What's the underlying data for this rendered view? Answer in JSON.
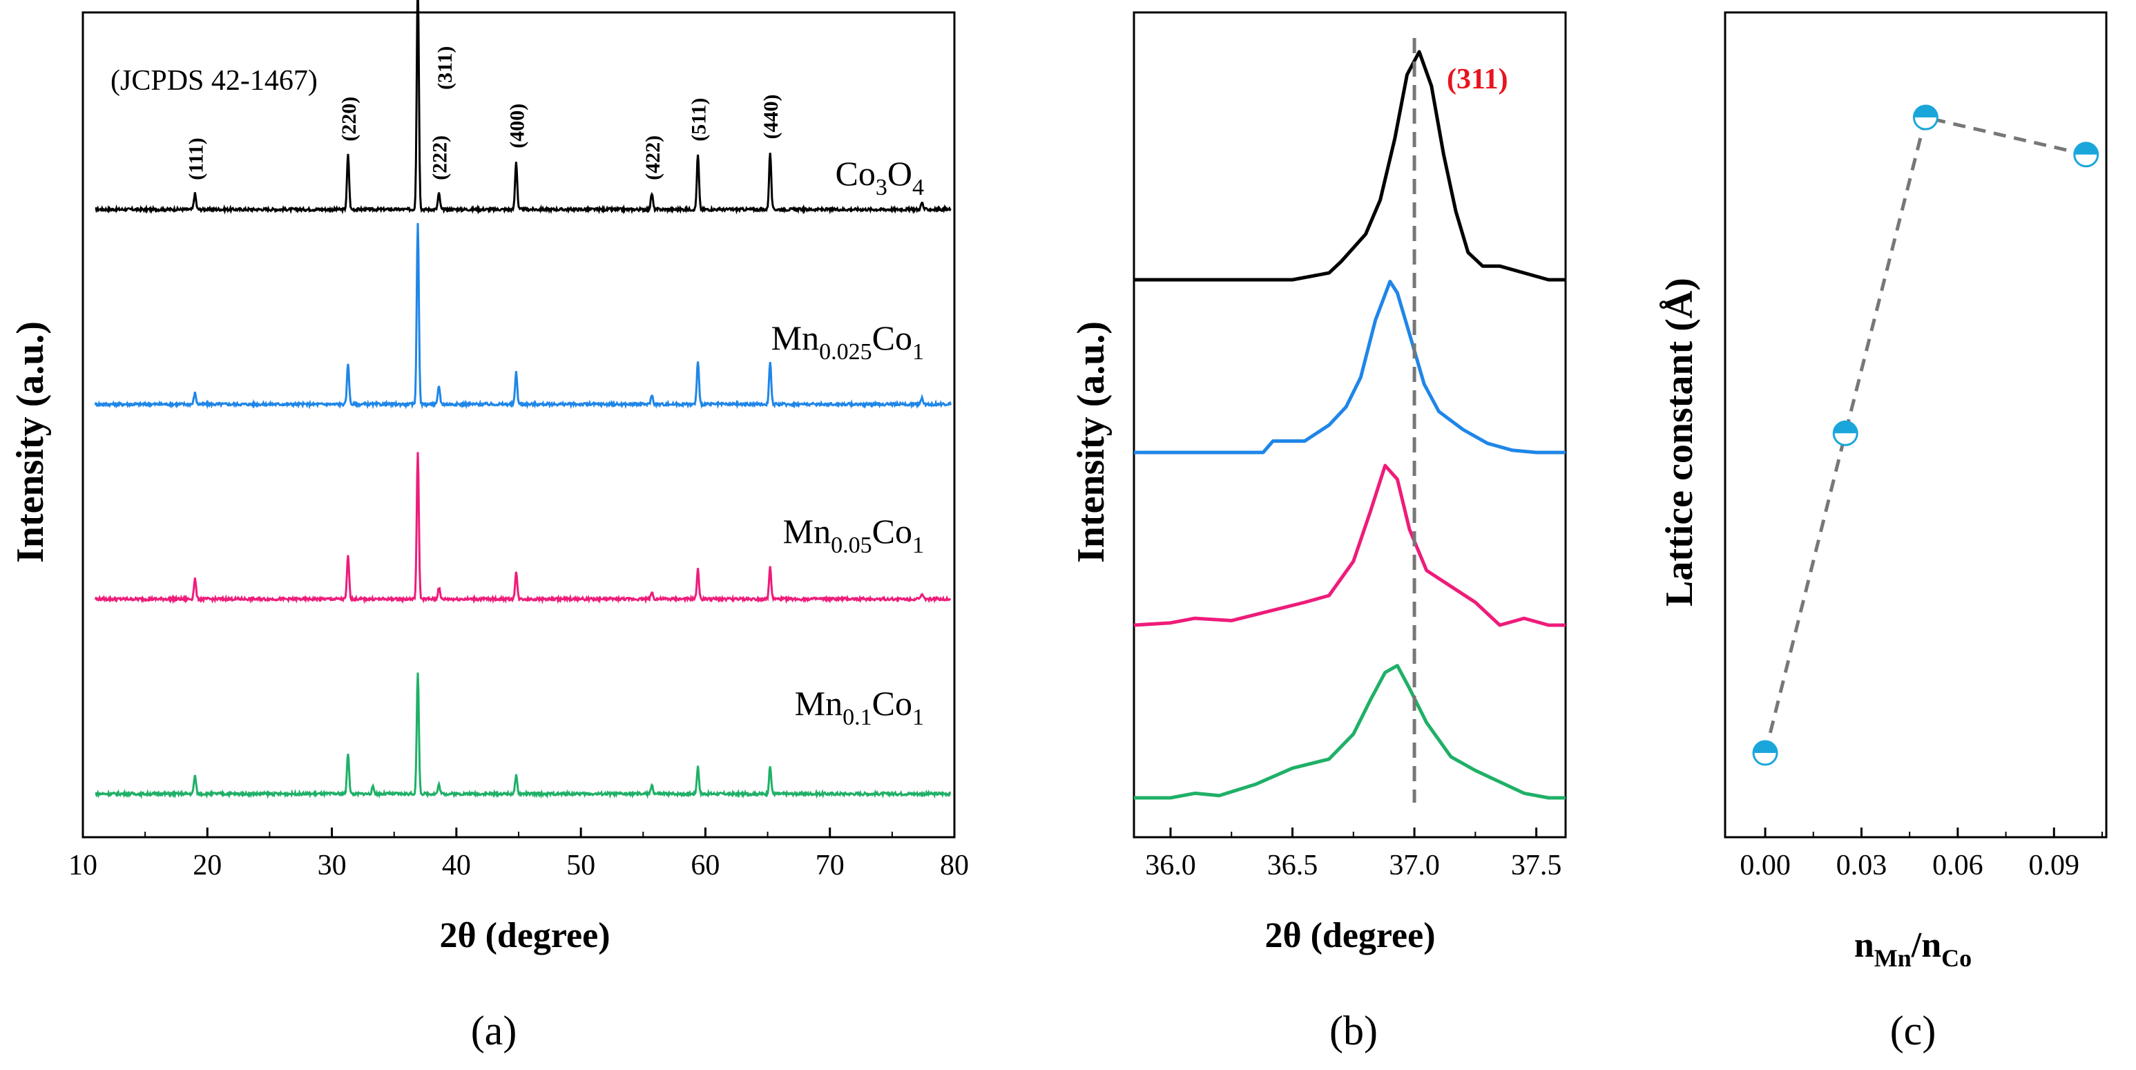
{
  "figure": {
    "panel_labels": [
      "(a)",
      "(b)",
      "(c)"
    ]
  },
  "colors": {
    "Co3O4": "#000000",
    "Mn0.025Co1": "#1f86e8",
    "Mn0.05Co1": "#ee1c7a",
    "Mn0.1Co1": "#1fb067",
    "marker": "#1aa6db",
    "peak_label": "#e8141e",
    "reference_line": "#777777"
  },
  "chart_data": [
    {
      "panel": "a",
      "type": "line",
      "xlabel": "2θ (degree)",
      "ylabel": "Intensity (a.u.)",
      "xlim": [
        10,
        80
      ],
      "xticks": [
        10,
        20,
        30,
        40,
        50,
        60,
        70,
        80
      ],
      "annotation": "(JCPDS 42-1467)",
      "peak_labels": [
        {
          "hkl": "(111)",
          "x": 19.0
        },
        {
          "hkl": "(220)",
          "x": 31.3
        },
        {
          "hkl": "(311)",
          "x": 36.9
        },
        {
          "hkl": "(222)",
          "x": 38.6
        },
        {
          "hkl": "(400)",
          "x": 44.8
        },
        {
          "hkl": "(422)",
          "x": 55.7
        },
        {
          "hkl": "(511)",
          "x": 59.4
        },
        {
          "hkl": "(440)",
          "x": 65.2
        }
      ],
      "series": [
        {
          "key": "Co3O4",
          "label": {
            "base": "Co",
            "sub1": "3",
            "mid": "O",
            "sub2": "4"
          },
          "offset": 3,
          "peaks": [
            [
              19.0,
              0.07
            ],
            [
              31.3,
              0.24
            ],
            [
              36.9,
              1.0
            ],
            [
              38.6,
              0.07
            ],
            [
              44.8,
              0.21
            ],
            [
              55.7,
              0.07
            ],
            [
              59.4,
              0.24
            ],
            [
              65.2,
              0.25
            ],
            [
              77.4,
              0.03
            ]
          ]
        },
        {
          "key": "Mn0.025Co1",
          "label": {
            "base": "Mn",
            "sub1": "0.025",
            "mid": "Co",
            "sub2": "1"
          },
          "offset": 2,
          "peaks": [
            [
              19.0,
              0.05
            ],
            [
              31.3,
              0.18
            ],
            [
              36.9,
              0.8
            ],
            [
              38.6,
              0.08
            ],
            [
              44.8,
              0.14
            ],
            [
              55.7,
              0.04
            ],
            [
              59.4,
              0.19
            ],
            [
              65.2,
              0.19
            ],
            [
              77.4,
              0.03
            ]
          ]
        },
        {
          "key": "Mn0.05Co1",
          "label": {
            "base": "Mn",
            "sub1": "0.05",
            "mid": "Co",
            "sub2": "1"
          },
          "offset": 1,
          "peaks": [
            [
              19.0,
              0.09
            ],
            [
              31.3,
              0.19
            ],
            [
              36.9,
              0.64
            ],
            [
              38.6,
              0.05
            ],
            [
              44.8,
              0.12
            ],
            [
              55.7,
              0.03
            ],
            [
              59.4,
              0.13
            ],
            [
              65.2,
              0.14
            ],
            [
              77.4,
              0.02
            ]
          ]
        },
        {
          "key": "Mn0.1Co1",
          "label": {
            "base": "Mn",
            "sub1": "0.1",
            "mid": "Co",
            "sub2": "1"
          },
          "offset": 0,
          "peaks": [
            [
              19.0,
              0.08
            ],
            [
              31.3,
              0.18
            ],
            [
              33.3,
              0.03
            ],
            [
              36.9,
              0.53
            ],
            [
              38.6,
              0.04
            ],
            [
              44.8,
              0.08
            ],
            [
              55.7,
              0.04
            ],
            [
              59.4,
              0.12
            ],
            [
              65.2,
              0.12
            ]
          ]
        }
      ]
    },
    {
      "panel": "b",
      "type": "line",
      "xlabel": "2θ (degree)",
      "ylabel": "Intensity (a.u.)",
      "xlim": [
        35.85,
        37.62
      ],
      "xticks": [
        "36.0",
        "36.5",
        "37.0",
        "37.5"
      ],
      "reference_line_x": 37.0,
      "peak_label": "(311)",
      "series": [
        {
          "key": "Co3O4",
          "offset": 3,
          "x": [
            35.85,
            36.5,
            36.65,
            36.7,
            36.8,
            36.86,
            36.92,
            36.97,
            37.02,
            37.07,
            37.12,
            37.17,
            37.22,
            37.28,
            37.35,
            37.45,
            37.55,
            37.62
          ],
          "y": [
            0.0,
            0.0,
            0.03,
            0.08,
            0.2,
            0.35,
            0.62,
            0.9,
            1.0,
            0.85,
            0.55,
            0.3,
            0.12,
            0.06,
            0.06,
            0.03,
            0.0,
            0.0
          ]
        },
        {
          "key": "Mn0.025Co1",
          "offset": 2,
          "x": [
            35.85,
            36.38,
            36.42,
            36.55,
            36.65,
            36.72,
            36.78,
            36.84,
            36.9,
            36.93,
            36.98,
            37.04,
            37.1,
            37.2,
            37.3,
            37.4,
            37.5,
            37.62
          ],
          "y": [
            0.0,
            0.0,
            0.05,
            0.05,
            0.12,
            0.2,
            0.33,
            0.58,
            0.75,
            0.7,
            0.52,
            0.3,
            0.18,
            0.1,
            0.04,
            0.01,
            0.0,
            0.0
          ]
        },
        {
          "key": "Mn0.05Co1",
          "offset": 1,
          "x": [
            35.85,
            36.0,
            36.1,
            36.25,
            36.4,
            36.55,
            36.65,
            36.75,
            36.82,
            36.88,
            36.93,
            36.98,
            37.05,
            37.15,
            37.25,
            37.35,
            37.45,
            37.55,
            37.62
          ],
          "y": [
            0.0,
            0.01,
            0.03,
            0.02,
            0.06,
            0.1,
            0.13,
            0.28,
            0.5,
            0.7,
            0.64,
            0.42,
            0.24,
            0.17,
            0.1,
            0.0,
            0.03,
            0.0,
            0.0
          ]
        },
        {
          "key": "Mn0.1Co1",
          "offset": 0,
          "x": [
            35.85,
            36.0,
            36.1,
            36.2,
            36.35,
            36.5,
            36.65,
            36.75,
            36.82,
            36.88,
            36.93,
            36.98,
            37.05,
            37.15,
            37.25,
            37.35,
            37.45,
            37.55,
            37.62
          ],
          "y": [
            0.0,
            0.0,
            0.02,
            0.01,
            0.06,
            0.13,
            0.17,
            0.28,
            0.43,
            0.55,
            0.58,
            0.48,
            0.33,
            0.18,
            0.12,
            0.07,
            0.02,
            0.0,
            0.0
          ]
        }
      ]
    },
    {
      "panel": "c",
      "type": "scatter",
      "xlabel": {
        "base1": "n",
        "sub1": "Mn",
        "mid": "/n",
        "sub2": "Co"
      },
      "ylabel": "Lattice constant (Å)",
      "xlim": [
        -0.0125,
        0.1063
      ],
      "xticks": [
        "0.00",
        "0.03",
        "0.06",
        "0.09"
      ],
      "ylim": [
        0,
        1
      ],
      "y_tick_labels": false,
      "points": [
        {
          "x": 0.0,
          "y": 0.12
        },
        {
          "x": 0.025,
          "y": 0.55
        },
        {
          "x": 0.05,
          "y": 0.975
        },
        {
          "x": 0.1,
          "y": 0.925
        }
      ]
    }
  ]
}
